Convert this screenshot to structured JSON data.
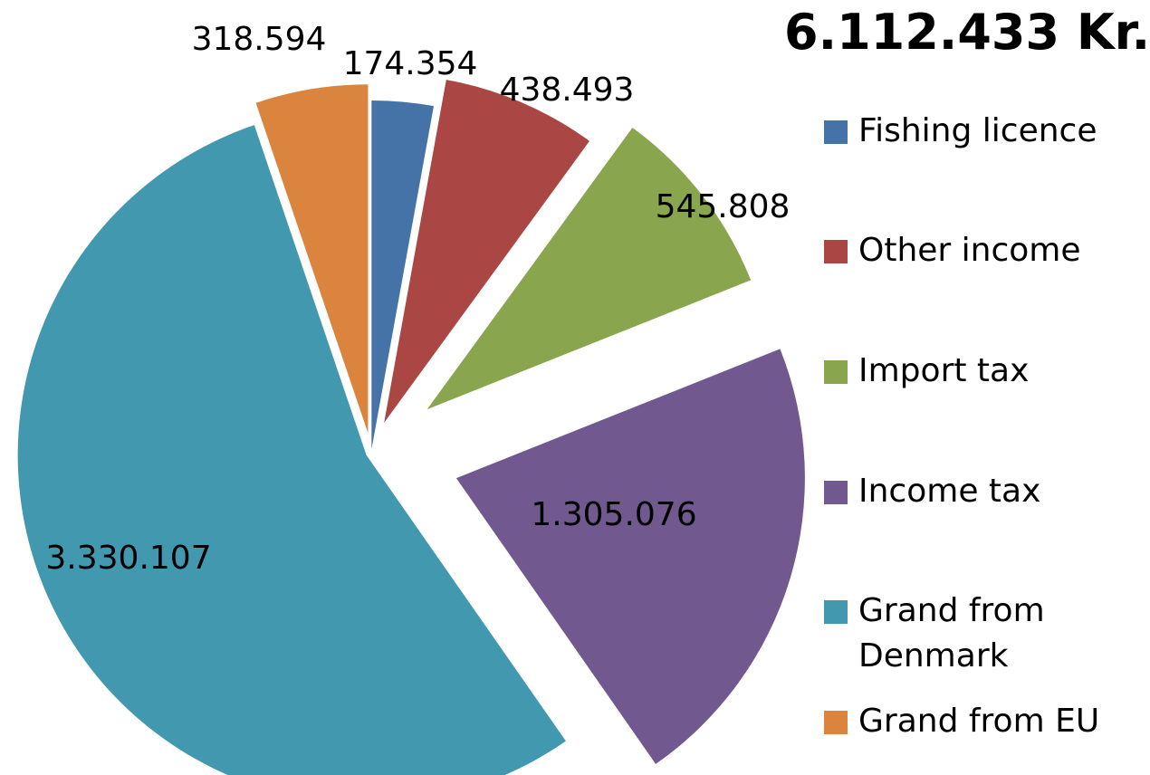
{
  "chart_data": {
    "type": "pie",
    "title": "6.112.433 Kr.",
    "series": [
      {
        "name": "Fishing licence",
        "value": 174354,
        "label": "174.354",
        "color": "#4572A7"
      },
      {
        "name": "Other income",
        "value": 438493,
        "label": "438.493",
        "color": "#AA4643"
      },
      {
        "name": "Import tax",
        "value": 545808,
        "label": "545.808",
        "color": "#89A54E"
      },
      {
        "name": "Income tax",
        "value": 1305076,
        "label": "1.305.076",
        "color": "#71588F"
      },
      {
        "name": "Grand from Denmark",
        "value": 3330107,
        "label": "3.330.107",
        "color": "#4198AF"
      },
      {
        "name": "Grand from EU",
        "value": 318594,
        "label": "318.594",
        "color": "#DB843D"
      }
    ],
    "legend_position": "right"
  }
}
